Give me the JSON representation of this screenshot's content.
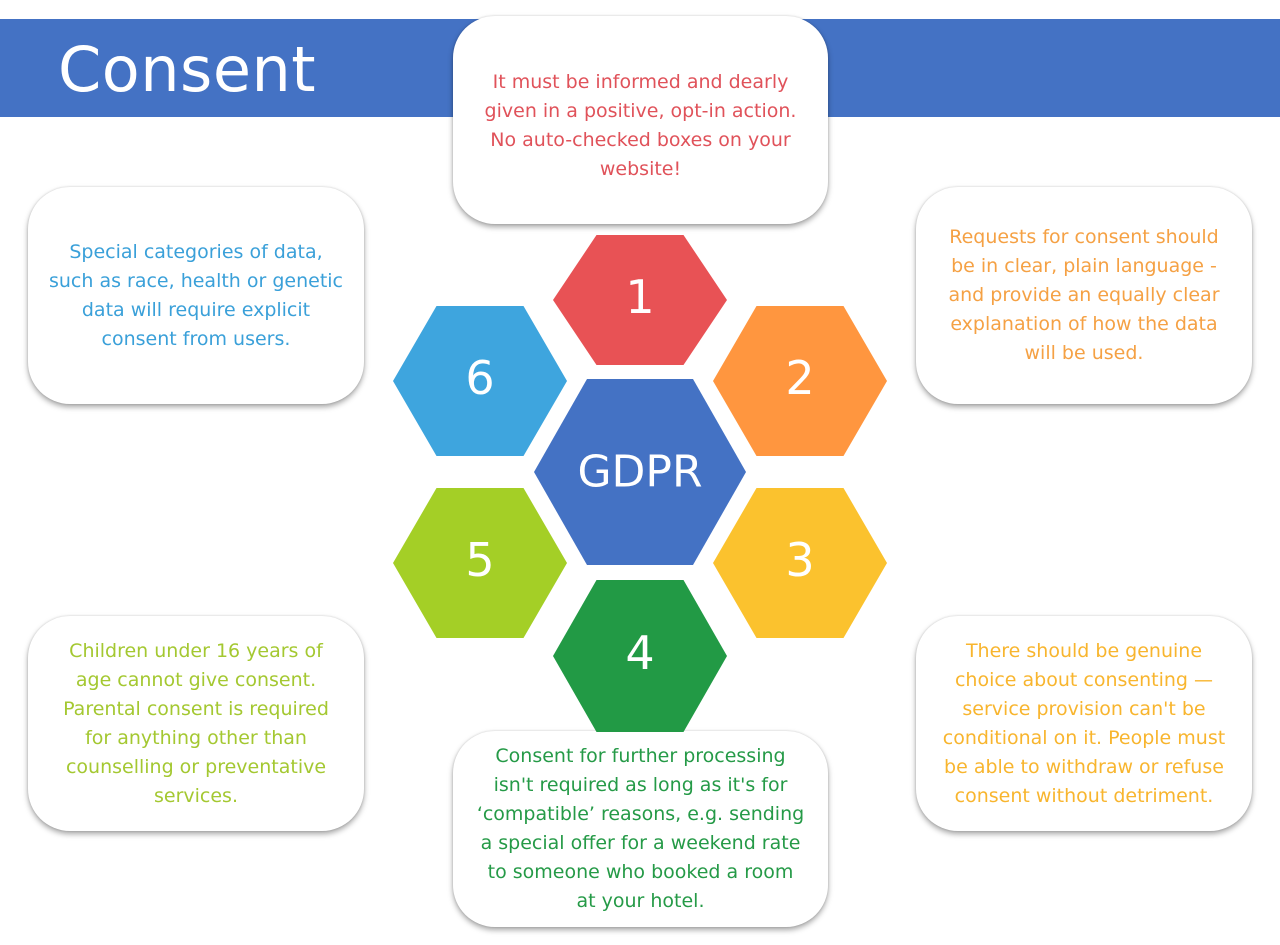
{
  "title": "Consent",
  "center": {
    "label": "GDPR",
    "color": "#4472c4"
  },
  "hexagons": [
    {
      "number": "1",
      "color": "#e85255"
    },
    {
      "number": "2",
      "color": "#ff963f"
    },
    {
      "number": "3",
      "color": "#fbc22e"
    },
    {
      "number": "4",
      "color": "#229a45"
    },
    {
      "number": "5",
      "color": "#a4cf26"
    },
    {
      "number": "6",
      "color": "#3ea5de"
    }
  ],
  "cards": {
    "top": "It must be informed and dearly\ngiven in a positive, opt-in action.\nNo auto-checked boxes on your\nwebsite!",
    "right": "Requests for consent should\nbe in clear, plain language -\nand provide an equally clear\nexplanation of how the data\nwill be used.",
    "bottom_right": "There should be genuine\nchoice about consenting —\nservice provision can't be\nconditional on it. People must\nbe able to withdraw or refuse\nconsent without detriment.",
    "bottom": "Consent for further processing\nisn't required as long as it's for\n‘compatible’ reasons, e.g. sending\na special offer for a weekend rate\nto someone who booked a room\nat your hotel.",
    "bottom_left": "Children under 16 years of\nage cannot give consent.\nParental consent is required\nfor anything other than\ncounselling or preventative\nservices.",
    "left": "Special categories of data,\nsuch as race, health or genetic\ndata will require explicit\nconsent from users."
  }
}
